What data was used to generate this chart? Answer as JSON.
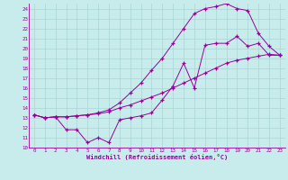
{
  "xlabel": "Windchill (Refroidissement éolien,°C)",
  "bg_color": "#c8ecec",
  "line_color": "#990099",
  "grid_color": "#aad4d4",
  "xlim": [
    -0.5,
    23.5
  ],
  "ylim": [
    10,
    24.5
  ],
  "xticks": [
    0,
    1,
    2,
    3,
    4,
    5,
    6,
    7,
    8,
    9,
    10,
    11,
    12,
    13,
    14,
    15,
    16,
    17,
    18,
    19,
    20,
    21,
    22,
    23
  ],
  "yticks": [
    10,
    11,
    12,
    13,
    14,
    15,
    16,
    17,
    18,
    19,
    20,
    21,
    22,
    23,
    24
  ],
  "line1_x": [
    0,
    1,
    2,
    3,
    4,
    5,
    6,
    7,
    8,
    9,
    10,
    11,
    12,
    13,
    14,
    15,
    16,
    17,
    18,
    19,
    20,
    21,
    22,
    23
  ],
  "line1_y": [
    13.3,
    13.0,
    13.1,
    11.8,
    11.8,
    10.5,
    11.0,
    10.5,
    12.8,
    13.0,
    13.2,
    13.5,
    14.8,
    16.2,
    18.5,
    16.0,
    20.3,
    20.5,
    20.5,
    21.2,
    20.2,
    20.5,
    19.3,
    19.3
  ],
  "line2_x": [
    0,
    1,
    2,
    3,
    4,
    5,
    6,
    7,
    8,
    9,
    10,
    11,
    12,
    13,
    14,
    15,
    16,
    17,
    18,
    19,
    20,
    21,
    22,
    23
  ],
  "line2_y": [
    13.3,
    13.0,
    13.1,
    13.1,
    13.2,
    13.3,
    13.4,
    13.6,
    14.0,
    14.3,
    14.7,
    15.1,
    15.5,
    16.0,
    16.5,
    17.0,
    17.5,
    18.0,
    18.5,
    18.8,
    19.0,
    19.2,
    19.4,
    19.3
  ],
  "line3_x": [
    0,
    1,
    2,
    3,
    4,
    5,
    6,
    7,
    8,
    9,
    10,
    11,
    12,
    13,
    14,
    15,
    16,
    17,
    18,
    19,
    20,
    21,
    22,
    23
  ],
  "line3_y": [
    13.3,
    13.0,
    13.1,
    13.1,
    13.2,
    13.3,
    13.5,
    13.8,
    14.5,
    15.5,
    16.5,
    17.8,
    19.0,
    20.5,
    22.0,
    23.5,
    24.0,
    24.2,
    24.5,
    24.0,
    23.8,
    21.5,
    20.2,
    19.3
  ]
}
